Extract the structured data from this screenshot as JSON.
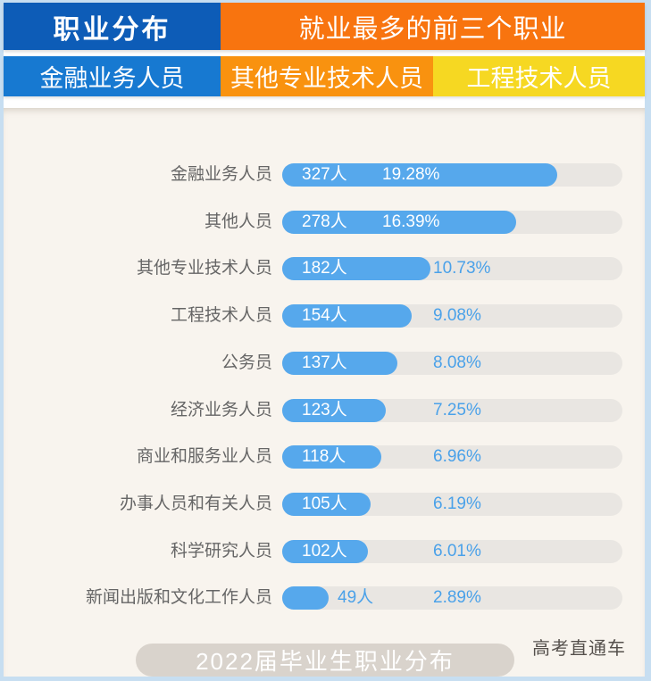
{
  "header": {
    "row1": {
      "left_label": "职业分布",
      "right_label": "就业最多的前三个职业"
    },
    "row2": {
      "items": [
        "金融业务人员",
        "其他专业技术人员",
        "工程技术人员"
      ]
    }
  },
  "footer": {
    "caption": "2022届毕业生职业分布",
    "brand": "高考直通车"
  },
  "colors": {
    "header_blue_dark": "#0d5cb7",
    "header_blue_light": "#1779d1",
    "header_orange_dark": "#f8740f",
    "header_orange_light": "#f9920f",
    "header_yellow": "#f6d822",
    "bar_blue": "#56a8ec",
    "value_text_blue": "#4aa1e9",
    "track_gray": "#e9e6e2",
    "content_background": "#f8f4ee",
    "outer_border_blue": "#c7def1",
    "footer_pill_gray": "#d9d3cc"
  },
  "chart_data": {
    "type": "bar",
    "title": "2022届毕业生职业分布",
    "orientation": "horizontal",
    "unit_people": "人",
    "unit_percent": "%",
    "categories": [
      "金融业务人员",
      "其他人员",
      "其他专业技术人员",
      "工程技术人员",
      "公务员",
      "经济业务人员",
      "商业和服务业人员",
      "办事人员和有关人员",
      "科学研究人员",
      "新闻出版和文化工作人员"
    ],
    "series": [
      {
        "name": "人数",
        "unit": "人",
        "values": [
          327,
          278,
          182,
          154,
          137,
          123,
          118,
          105,
          102,
          49
        ]
      },
      {
        "name": "占比",
        "unit": "%",
        "values": [
          19.28,
          16.39,
          10.73,
          9.08,
          8.08,
          7.25,
          6.96,
          6.19,
          6.01,
          2.89
        ]
      }
    ],
    "value_range_people": [
      0,
      327
    ],
    "grid": false,
    "legend": false
  }
}
